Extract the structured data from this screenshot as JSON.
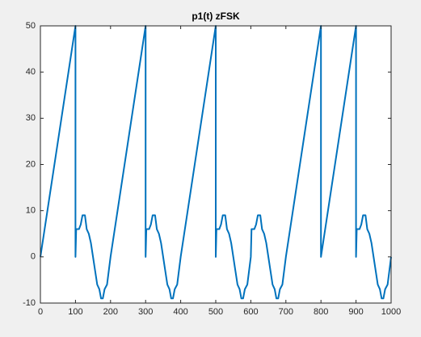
{
  "chart_data": {
    "type": "line",
    "title": "p1(t) zFSK",
    "x": [
      0,
      10,
      20,
      30,
      40,
      50,
      60,
      70,
      80,
      90,
      100,
      100,
      102,
      110,
      115,
      120,
      127,
      132,
      138,
      144,
      150,
      156,
      162,
      168,
      173,
      178,
      183,
      190,
      195,
      200,
      210,
      220,
      230,
      240,
      250,
      260,
      270,
      280,
      290,
      300,
      300,
      302,
      310,
      315,
      320,
      327,
      332,
      338,
      344,
      350,
      356,
      362,
      368,
      373,
      378,
      383,
      390,
      395,
      400,
      410,
      420,
      430,
      440,
      450,
      460,
      470,
      480,
      490,
      500,
      500,
      502,
      510,
      515,
      520,
      527,
      532,
      538,
      544,
      550,
      556,
      562,
      568,
      573,
      578,
      583,
      590,
      595,
      600,
      602,
      610,
      615,
      620,
      627,
      632,
      638,
      644,
      650,
      656,
      662,
      668,
      673,
      678,
      683,
      690,
      695,
      700,
      710,
      720,
      730,
      740,
      750,
      760,
      770,
      780,
      790,
      800,
      800,
      810,
      820,
      830,
      840,
      850,
      860,
      870,
      880,
      890,
      900,
      900,
      902,
      910,
      915,
      920,
      927,
      932,
      938,
      944,
      950,
      956,
      962,
      968,
      973,
      978,
      983,
      990,
      995,
      1000
    ],
    "series": [
      {
        "name": "p1",
        "color": "#0072bd",
        "values": [
          0,
          5,
          10,
          15,
          20,
          25,
          30,
          35,
          40,
          45,
          50,
          0,
          6,
          6,
          7,
          9,
          9,
          6,
          5,
          3,
          0,
          -3,
          -6,
          -7,
          -9,
          -9,
          -7,
          -6,
          -3,
          0,
          5,
          10,
          15,
          20,
          25,
          30,
          35,
          40,
          45,
          50,
          0,
          6,
          6,
          7,
          9,
          9,
          6,
          5,
          3,
          0,
          -3,
          -6,
          -7,
          -9,
          -9,
          -7,
          -6,
          -3,
          0,
          5,
          10,
          15,
          20,
          25,
          30,
          35,
          40,
          45,
          50,
          0,
          6,
          6,
          7,
          9,
          9,
          6,
          5,
          3,
          0,
          -3,
          -6,
          -7,
          -9,
          -9,
          -7,
          -6,
          -3,
          0,
          6,
          6,
          7,
          9,
          9,
          6,
          5,
          3,
          0,
          -3,
          -6,
          -7,
          -9,
          -9,
          -7,
          -6,
          -3,
          0,
          5,
          10,
          15,
          20,
          25,
          30,
          35,
          40,
          45,
          50,
          0,
          5,
          10,
          15,
          20,
          25,
          30,
          35,
          40,
          45,
          50,
          0,
          6,
          6,
          7,
          9,
          9,
          6,
          5,
          3,
          0,
          -3,
          -6,
          -7,
          -9,
          -9,
          -7,
          -6,
          -3,
          0
        ]
      }
    ],
    "xlim": [
      0,
      1000
    ],
    "xticks": [
      0,
      100,
      200,
      300,
      400,
      500,
      600,
      700,
      800,
      900,
      1000
    ],
    "ylim": [
      -10,
      50
    ],
    "yticks": [
      -10,
      0,
      10,
      20,
      30,
      40,
      50
    ]
  }
}
